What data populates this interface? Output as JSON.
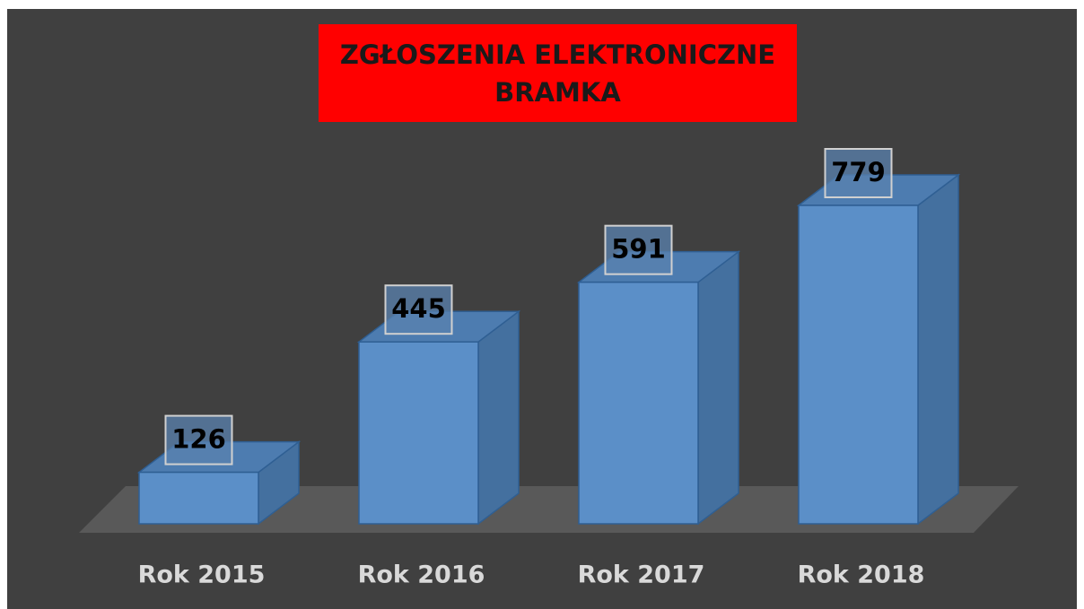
{
  "chart_data": {
    "type": "bar3d",
    "title": "ZGŁOSZENIA ELEKTRONICZNE BRAMKA",
    "categories": [
      "Rok 2015",
      "Rok 2016",
      "Rok 2017",
      "Rok 2018"
    ],
    "values": [
      126,
      445,
      591,
      779
    ],
    "color": "#5b8fc8"
  }
}
